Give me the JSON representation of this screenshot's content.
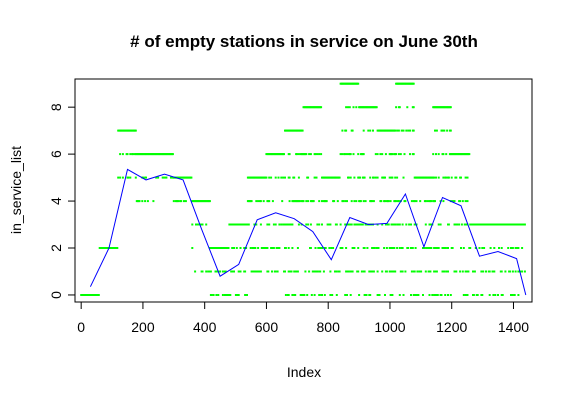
{
  "chart_data": {
    "type": "scatter",
    "title": "# of empty stations in service on June 30th",
    "xlabel": "Index",
    "ylabel": "in_service_list",
    "xlim": [
      -20,
      1460
    ],
    "ylim": [
      -0.3,
      9.2
    ],
    "x_ticks": [
      0,
      200,
      400,
      600,
      800,
      1000,
      1200,
      1400
    ],
    "y_ticks": [
      0,
      2,
      4,
      6,
      8
    ],
    "grid": false,
    "point_color": "#00ff00",
    "line_color": "#0000ff",
    "trend_line": {
      "x": [
        30,
        90,
        150,
        210,
        270,
        330,
        390,
        450,
        510,
        570,
        630,
        690,
        750,
        810,
        870,
        930,
        990,
        1050,
        1110,
        1170,
        1230,
        1290,
        1350,
        1410,
        1440
      ],
      "y": [
        0.35,
        2.0,
        5.35,
        4.9,
        5.15,
        4.9,
        2.8,
        0.8,
        1.3,
        3.2,
        3.5,
        3.25,
        2.7,
        1.5,
        3.3,
        3.0,
        3.05,
        4.3,
        2.05,
        4.15,
        3.8,
        1.65,
        1.85,
        1.55,
        0.0
      ]
    },
    "point_segments": [
      {
        "x_start": 0,
        "x_end": 60,
        "values": [
          0
        ]
      },
      {
        "x_start": 60,
        "x_end": 120,
        "values": [
          2
        ]
      },
      {
        "x_start": 120,
        "x_end": 180,
        "values": [
          7,
          6,
          5
        ]
      },
      {
        "x_start": 180,
        "x_end": 240,
        "values": [
          6,
          5,
          4
        ]
      },
      {
        "x_start": 240,
        "x_end": 300,
        "values": [
          6,
          5
        ]
      },
      {
        "x_start": 300,
        "x_end": 360,
        "values": [
          5,
          4
        ]
      },
      {
        "x_start": 360,
        "x_end": 420,
        "values": [
          4,
          3,
          2,
          1
        ]
      },
      {
        "x_start": 420,
        "x_end": 480,
        "values": [
          2,
          1,
          0
        ]
      },
      {
        "x_start": 480,
        "x_end": 540,
        "values": [
          3,
          2,
          1,
          0
        ]
      },
      {
        "x_start": 540,
        "x_end": 600,
        "values": [
          5,
          4,
          3,
          2,
          1
        ]
      },
      {
        "x_start": 600,
        "x_end": 660,
        "values": [
          6,
          5,
          4,
          3,
          2,
          1
        ]
      },
      {
        "x_start": 660,
        "x_end": 720,
        "values": [
          7,
          6,
          5,
          4,
          3,
          2,
          1,
          0
        ]
      },
      {
        "x_start": 720,
        "x_end": 780,
        "values": [
          8,
          6,
          5,
          4,
          3,
          2,
          1,
          0
        ]
      },
      {
        "x_start": 780,
        "x_end": 840,
        "values": [
          5,
          4,
          3,
          2,
          1,
          0
        ]
      },
      {
        "x_start": 840,
        "x_end": 900,
        "values": [
          9,
          8,
          7,
          6,
          5,
          4,
          3,
          2,
          1,
          0
        ]
      },
      {
        "x_start": 900,
        "x_end": 960,
        "values": [
          8,
          7,
          6,
          5,
          4,
          3,
          2,
          1,
          0
        ]
      },
      {
        "x_start": 960,
        "x_end": 1020,
        "values": [
          7,
          6,
          5,
          4,
          3,
          2,
          1,
          0
        ]
      },
      {
        "x_start": 1020,
        "x_end": 1080,
        "values": [
          9,
          8,
          7,
          6,
          5,
          4,
          3,
          2,
          1,
          0
        ]
      },
      {
        "x_start": 1080,
        "x_end": 1140,
        "values": [
          5,
          4,
          3,
          2,
          1,
          0
        ]
      },
      {
        "x_start": 1140,
        "x_end": 1200,
        "values": [
          8,
          7,
          6,
          5,
          4,
          3,
          2,
          1,
          0
        ]
      },
      {
        "x_start": 1200,
        "x_end": 1260,
        "values": [
          6,
          5,
          4,
          3,
          2,
          1,
          0
        ]
      },
      {
        "x_start": 1260,
        "x_end": 1320,
        "values": [
          3,
          2,
          1,
          0
        ]
      },
      {
        "x_start": 1320,
        "x_end": 1380,
        "values": [
          3,
          2,
          1,
          0
        ]
      },
      {
        "x_start": 1380,
        "x_end": 1440,
        "values": [
          3,
          2,
          1,
          0
        ]
      }
    ]
  }
}
